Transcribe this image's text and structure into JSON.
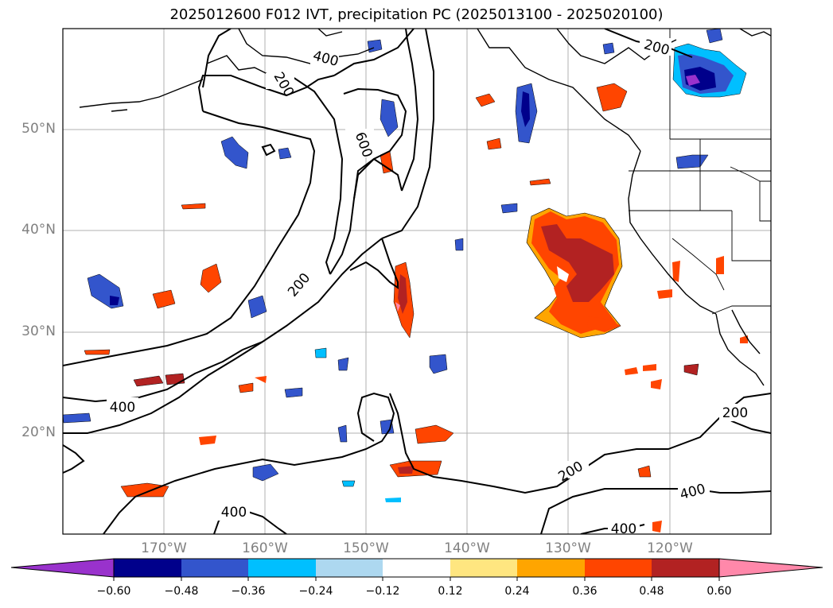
{
  "title": "2025012600 F012 IVT, precipitation PC (2025013100 - 2025020100)",
  "lat_labels": [
    "50°N",
    "40°N",
    "30°N",
    "20°N"
  ],
  "lon_labels": [
    "170°W",
    "160°W",
    "150°W",
    "140°W",
    "130°W",
    "120°W"
  ],
  "contour_labels": [
    "400",
    "200",
    "600",
    "200",
    "400",
    "200",
    "400",
    "200",
    "400",
    "200",
    "400"
  ],
  "colorbar": {
    "ticks": [
      "−0.60",
      "−0.48",
      "−0.36",
      "−0.24",
      "−0.12",
      "0.12",
      "0.24",
      "0.36",
      "0.48",
      "0.60"
    ],
    "colors": [
      "#9932cc",
      "#00008b",
      "#3355cc",
      "#00bfff",
      "#add8f0",
      "#ffffff",
      "#ffe680",
      "#ffa500",
      "#ff4500",
      "#b22222",
      "#ff88aa"
    ]
  }
}
